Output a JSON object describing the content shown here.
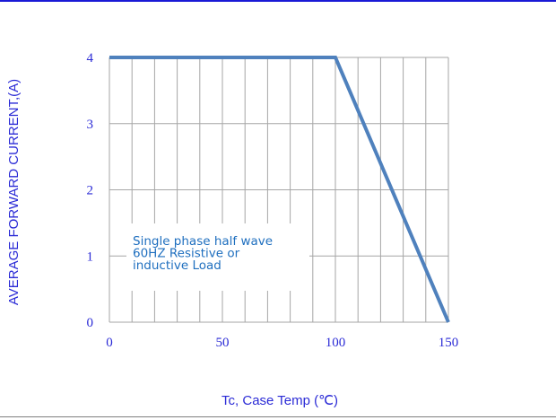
{
  "chart_data": {
    "type": "line",
    "xlabel": "Tc, Case Temp (℃)",
    "ylabel": "AVERAGE FORWARD CURRENT,(A)",
    "xlim": [
      0,
      150
    ],
    "ylim": [
      0,
      4
    ],
    "x_ticks": [
      0,
      50,
      100,
      150
    ],
    "y_ticks": [
      0,
      1,
      2,
      3,
      4
    ],
    "grid": true,
    "series": [
      {
        "x": [
          0,
          100,
          150
        ],
        "values": [
          4,
          4,
          0
        ]
      }
    ],
    "annotation": [
      "Single phase half wave",
      "60HZ Resistive or",
      "inductive Load"
    ]
  },
  "colors": {
    "line": "#4f81bd",
    "text": "#2b2bd6",
    "annotation": "#1f6fbf",
    "grid": "#a6a6a6",
    "frame": "#1a1ad6"
  }
}
